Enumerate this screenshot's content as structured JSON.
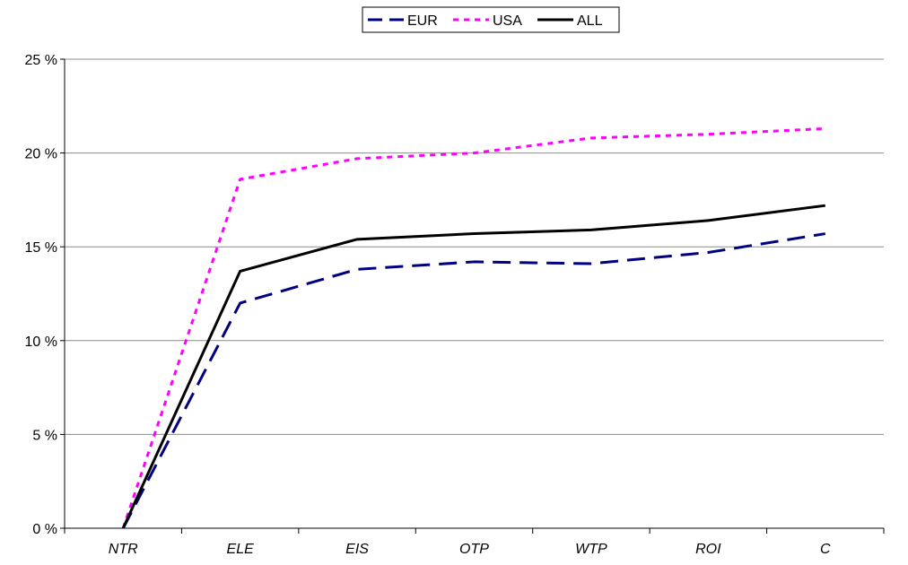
{
  "chart_data": {
    "type": "line",
    "title": "",
    "xlabel": "",
    "ylabel": "",
    "categories": [
      "NTR",
      "ELE",
      "EIS",
      "OTP",
      "WTP",
      "ROI",
      "C"
    ],
    "ylim": [
      0,
      25
    ],
    "yticks": [
      0,
      5,
      10,
      15,
      20,
      25
    ],
    "ytick_labels": [
      "0 %",
      "5 %",
      "10 %",
      "15 %",
      "20 %",
      "25 %"
    ],
    "grid": true,
    "legend_position": "top-center",
    "series": [
      {
        "name": "EUR",
        "values": [
          0,
          12.0,
          13.8,
          14.2,
          14.1,
          14.7,
          15.7
        ],
        "color": "#000080",
        "line_style": "long-dash"
      },
      {
        "name": "USA",
        "values": [
          0,
          18.6,
          19.7,
          20.0,
          20.8,
          21.0,
          21.3
        ],
        "color": "#ff00ff",
        "line_style": "short-dash"
      },
      {
        "name": "ALL",
        "values": [
          0,
          13.7,
          15.4,
          15.7,
          15.9,
          16.4,
          17.2
        ],
        "color": "#000000",
        "line_style": "solid"
      }
    ]
  }
}
